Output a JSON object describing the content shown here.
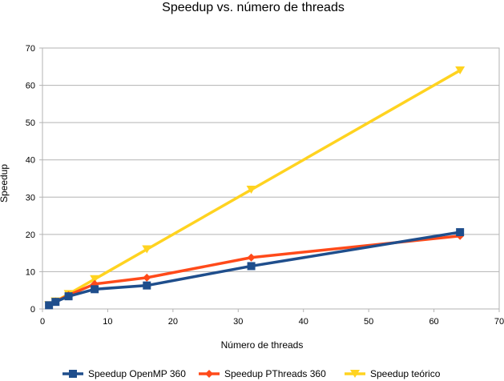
{
  "chart_data": {
    "type": "line",
    "title": "Speedup vs. número de threads",
    "xlabel": "Número de threads",
    "ylabel": "Speedup",
    "xlim": [
      0,
      70
    ],
    "ylim": [
      0,
      70
    ],
    "xticks": [
      0,
      10,
      20,
      30,
      40,
      50,
      60,
      70
    ],
    "yticks": [
      0,
      10,
      20,
      30,
      40,
      50,
      60,
      70
    ],
    "x_tick_labels": [
      "0",
      "10",
      "20",
      "30",
      "40",
      "50",
      "60",
      "70"
    ],
    "y_tick_labels": [
      "0",
      "10",
      "20",
      "30",
      "40",
      "50",
      "60",
      "70"
    ],
    "grid": "horizontal",
    "legend_position": "bottom",
    "series": [
      {
        "name": "Speedup OpenMP 360",
        "color": "#1f4e8c",
        "marker": "square",
        "x": [
          1,
          2,
          4,
          8,
          16,
          32,
          64
        ],
        "values": [
          1.0,
          1.9,
          3.4,
          5.3,
          6.3,
          11.5,
          20.6
        ]
      },
      {
        "name": "Speedup PThreads 360",
        "color": "#ff4a1a",
        "marker": "diamond",
        "x": [
          1,
          2,
          4,
          8,
          16,
          32,
          64
        ],
        "values": [
          1.0,
          2.0,
          3.7,
          6.7,
          8.4,
          13.8,
          19.6
        ]
      },
      {
        "name": "Speedup teórico",
        "color": "#ffd320",
        "marker": "triangle-down",
        "x": [
          1,
          2,
          4,
          8,
          16,
          32,
          64
        ],
        "values": [
          1,
          2,
          4,
          8,
          16,
          32,
          64
        ]
      }
    ]
  }
}
